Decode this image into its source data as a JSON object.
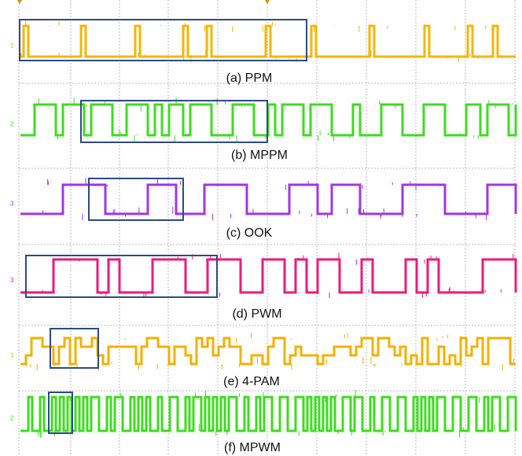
{
  "panels": [
    {
      "caption": "(a) PPM",
      "channel": "1"
    },
    {
      "caption": "(b) MPPM",
      "channel": "2"
    },
    {
      "caption": "(c) OOK",
      "channel": "3"
    },
    {
      "caption": "(d) PWM",
      "channel": "3"
    },
    {
      "caption": "(e) 4-PAM",
      "channel": "1"
    },
    {
      "caption": "(f) MPWM",
      "channel": "2"
    }
  ]
}
